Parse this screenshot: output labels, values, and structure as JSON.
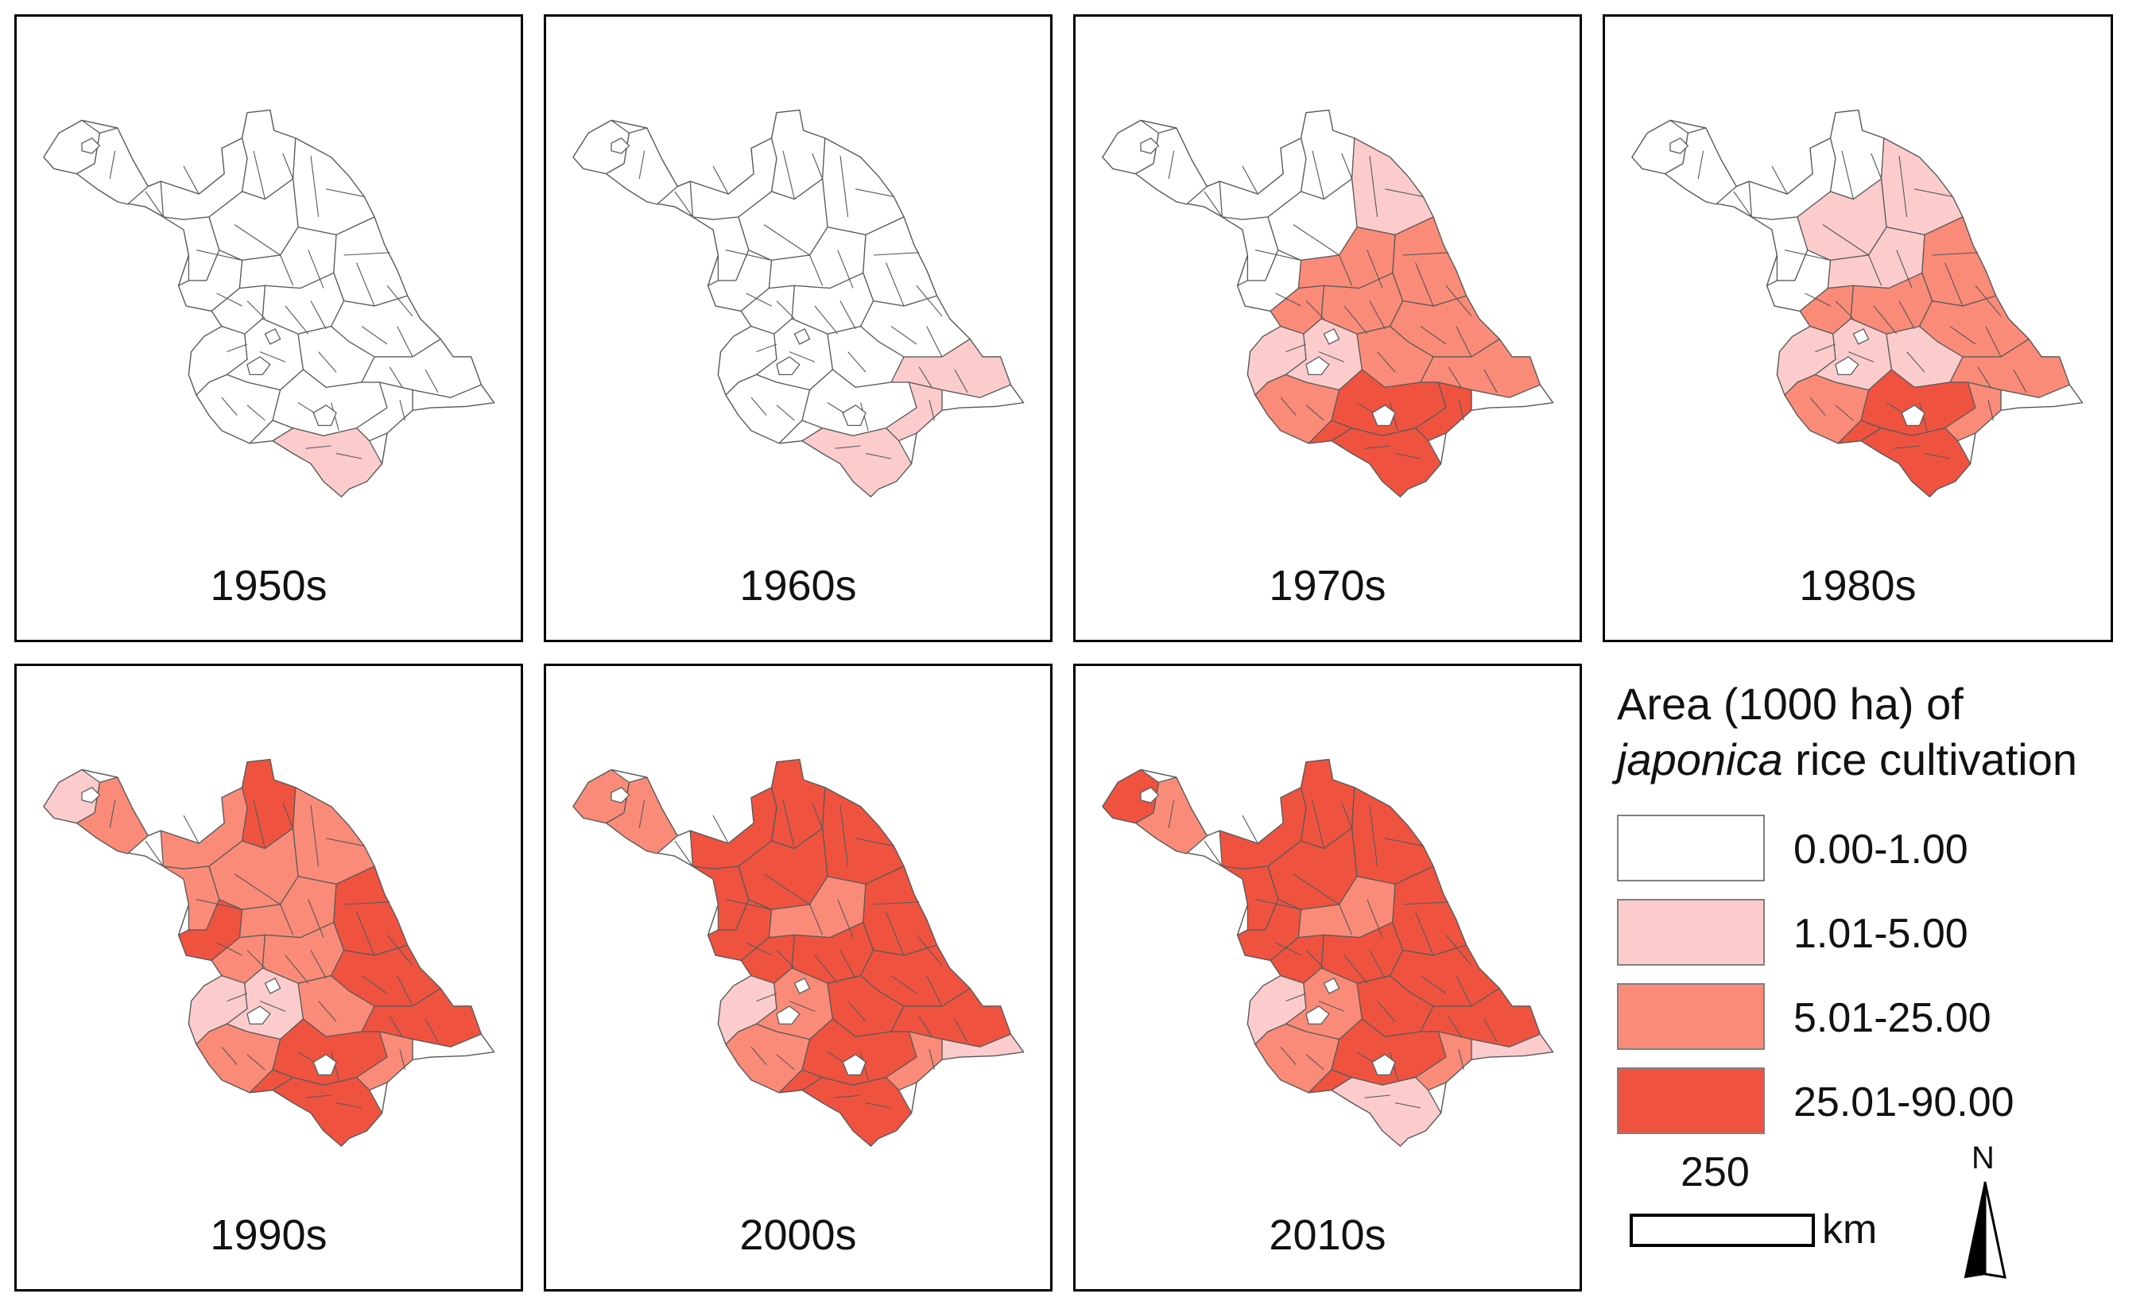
{
  "figure": {
    "colors": {
      "class1": "#ffffff",
      "class2": "#fccccc",
      "class3": "#fa8b78",
      "class4": "#ef5340",
      "outline": "#5a5a5a",
      "frame": "#000000"
    },
    "panels": [
      {
        "decade": "1950s",
        "max_class": 2,
        "shading": {
          "cls2": [
            "S3"
          ]
        }
      },
      {
        "decade": "1960s",
        "max_class": 2,
        "shading": {
          "cls2": [
            "S2",
            "S3",
            "E2"
          ]
        }
      },
      {
        "decade": "1970s",
        "max_class": 4,
        "shading": {
          "cls2": [
            "N3",
            "C6",
            "W4"
          ],
          "cls3": [
            "C3",
            "C4",
            "C5",
            "C7",
            "E1",
            "E2",
            "C2",
            "W5"
          ],
          "cls4": [
            "S1",
            "S2",
            "S3",
            "S4"
          ]
        }
      },
      {
        "decade": "1980s",
        "max_class": 4,
        "shading": {
          "cls2": [
            "N3",
            "C1",
            "C2",
            "C6",
            "W4",
            "E1"
          ],
          "cls3": [
            "C3",
            "C4",
            "C5",
            "C7",
            "E2",
            "W5",
            "S2"
          ],
          "cls4": [
            "S1",
            "S3",
            "S4"
          ]
        }
      },
      {
        "decade": "1990s",
        "max_class": 4,
        "shading": {
          "cls2": [
            "W1",
            "W4",
            "C6"
          ],
          "cls3": [
            "N",
            "C1",
            "C2",
            "C4",
            "C5",
            "W2",
            "W3",
            "W5",
            "N3",
            "E1",
            "S2"
          ],
          "cls4": [
            "N2",
            "W3b",
            "C3",
            "C7",
            "E2",
            "S1",
            "S3",
            "S4"
          ]
        }
      },
      {
        "decade": "2000s",
        "max_class": 4,
        "shading": {
          "cls2": [
            "C6",
            "E3"
          ],
          "cls3": [
            "W1",
            "W2",
            "W4",
            "W5",
            "S2",
            "C2"
          ],
          "cls4": [
            "N",
            "N2",
            "N3",
            "W3",
            "W3b",
            "C1",
            "C3",
            "C4",
            "C5",
            "C7",
            "E1",
            "E2",
            "S1",
            "S3",
            "S4"
          ]
        }
      },
      {
        "decade": "2010s",
        "max_class": 4,
        "shading": {
          "cls2": [
            "C6",
            "S3",
            "E3"
          ],
          "cls3": [
            "W2",
            "W4",
            "W5",
            "S2",
            "C2"
          ],
          "cls4": [
            "W1",
            "N",
            "N2",
            "N3",
            "W3",
            "W3b",
            "C1",
            "C3",
            "C4",
            "C5",
            "C7",
            "E1",
            "E2",
            "S1",
            "S4"
          ]
        }
      }
    ],
    "legend": {
      "title_line1": "Area (1000 ha) of",
      "title_italic": "japonica",
      "title_rest": " rice cultivation",
      "classes": [
        {
          "range": "0.00-1.00",
          "color": "#ffffff"
        },
        {
          "range": "1.01-5.00",
          "color": "#fccccc"
        },
        {
          "range": "5.01-25.00",
          "color": "#fa8b78"
        },
        {
          "range": "25.01-90.00",
          "color": "#ef5340"
        }
      ]
    },
    "scale_bar": {
      "value": "250",
      "unit": "km"
    },
    "north_arrow": {
      "label": "N",
      "icon": "north-arrow-icon"
    }
  }
}
